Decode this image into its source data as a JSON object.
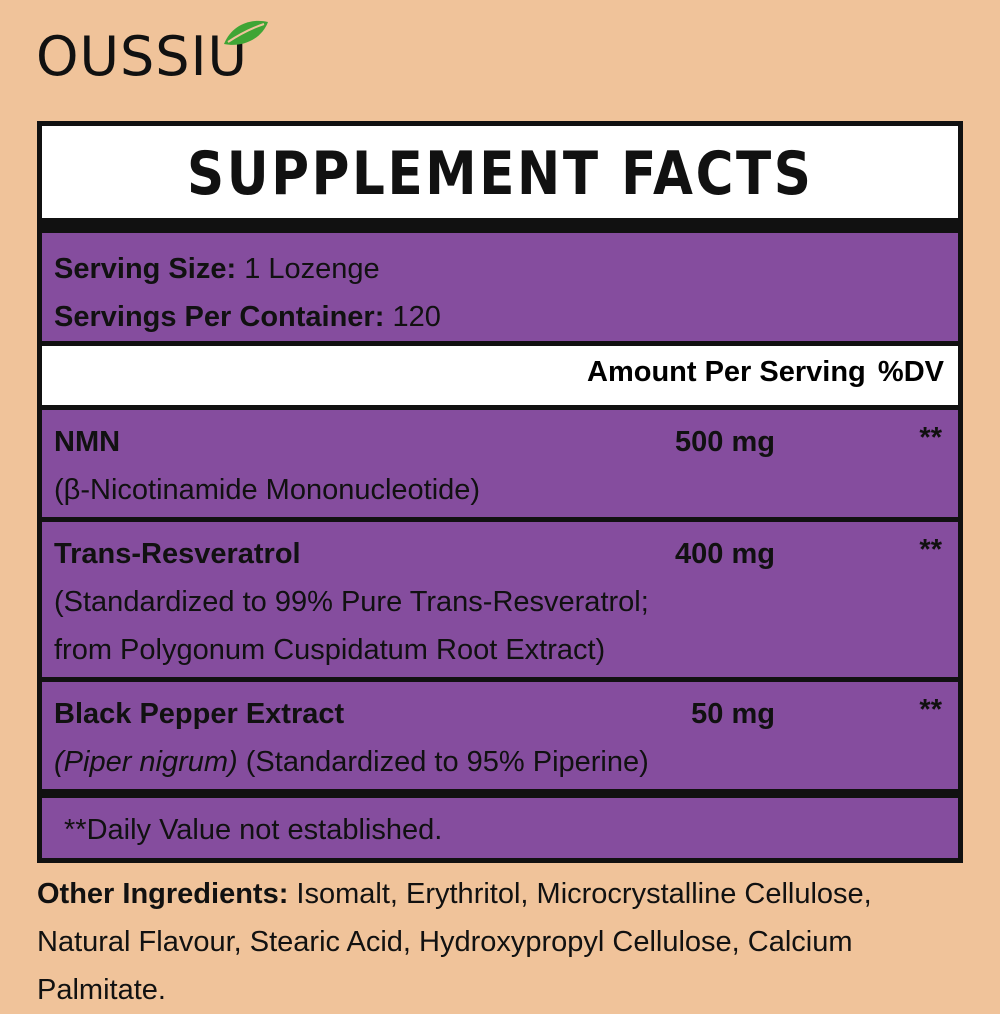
{
  "brand": {
    "name": "OUSSIU",
    "colors": {
      "leaf": "#3fa535",
      "panel_purple": "#854d9e",
      "background": "#f0c39a"
    }
  },
  "title": "SUPPLEMENT FACTS",
  "serving": {
    "size_label": "Serving Size:",
    "size_value": "1 Lozenge",
    "per_container_label": "Servings Per Container:",
    "per_container_value": "120"
  },
  "header": {
    "amount_label": "Amount Per Serving",
    "dv_label": "%DV"
  },
  "ingredients": [
    {
      "name": "NMN",
      "amount": "500 mg",
      "dv": "**",
      "desc1": "(β-Nicotinamide Mononucleotide)"
    },
    {
      "name": "Trans-Resveratrol",
      "amount": "400 mg",
      "dv": "**",
      "desc1": "(Standardized to 99% Pure Trans-Resveratrol;",
      "desc2": "from Polygonum Cuspidatum Root Extract)"
    },
    {
      "name": "Black Pepper Extract",
      "amount": "50 mg",
      "dv": "**",
      "latin": "(Piper nigrum)",
      "desc1": " (Standardized to 95% Piperine)"
    }
  ],
  "footnote": "**Daily Value not established.",
  "other_ingredients": {
    "label": "Other Ingredients:",
    "text": " Isomalt, Erythritol, Microcrystalline Cellulose, Natural Flavour, Stearic Acid, Hydroxypropyl Cellulose, Calcium Palmitate."
  }
}
